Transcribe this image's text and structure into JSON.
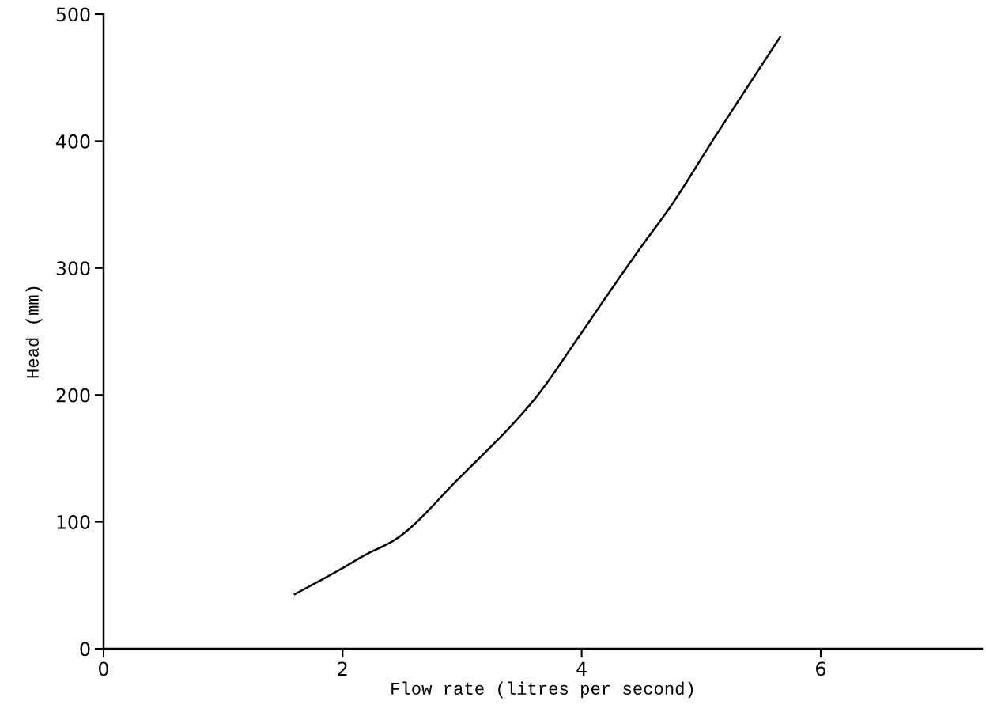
{
  "chart_data": {
    "type": "line",
    "xlabel": "Flow rate (litres per second)",
    "ylabel": "Head (mm)",
    "x": [
      1.6,
      1.99,
      2.19,
      2.44,
      2.97,
      3.6,
      3.97,
      4.21,
      4.5,
      4.74,
      5.12,
      5.66
    ],
    "series": [
      {
        "color": "#000000",
        "values": [
          43,
          63,
          74,
          86,
          134,
          196,
          245,
          278,
          317,
          348,
          404,
          482
        ]
      }
    ],
    "xlim": [
      0,
      7.35
    ],
    "ylim": [
      0,
      500
    ],
    "xticks": [
      0,
      2,
      4,
      6
    ],
    "yticks": [
      0,
      100,
      200,
      300,
      400,
      500
    ],
    "grid": false,
    "legend": false,
    "marker": "none",
    "line_style": "solid"
  }
}
